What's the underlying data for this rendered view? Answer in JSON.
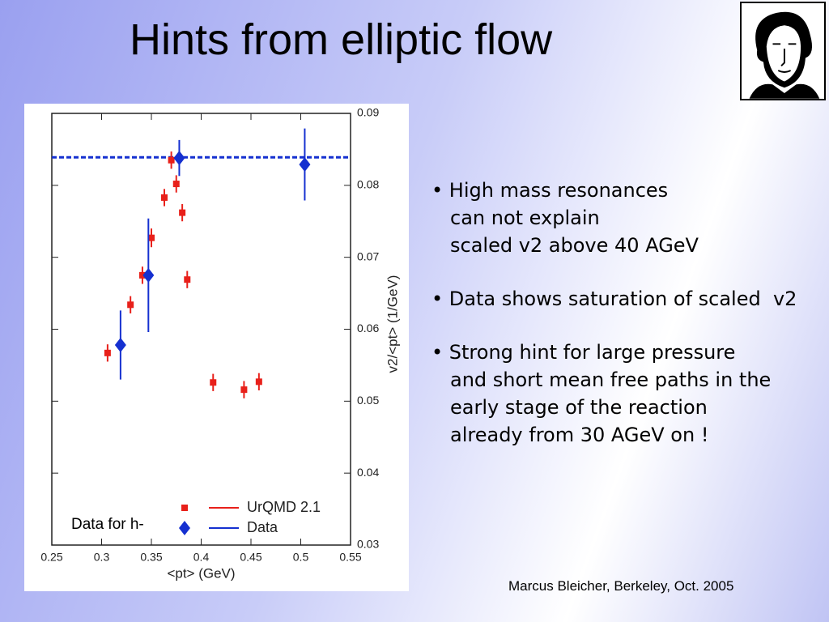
{
  "title": "Hints from elliptic flow",
  "bullets": [
    [
      "• High mass resonances",
      "can not explain",
      "scaled v2 above 40 AGeV"
    ],
    [
      "• Data shows saturation of scaled  v2"
    ],
    [
      "• Strong hint for large pressure",
      "and short mean free paths in the",
      "early stage of the reaction",
      "already from 30 AGeV on !"
    ]
  ],
  "footer": "Marcus Bleicher, Berkeley, Oct. 2005",
  "chart_data": {
    "type": "scatter",
    "xlabel": "<pt> (GeV)",
    "ylabel": "v2/<pt> (1/GeV)",
    "xlim": [
      0.25,
      0.55
    ],
    "xticks": [
      0.25,
      0.3,
      0.35,
      0.4,
      0.45,
      0.5,
      0.55
    ],
    "ylim": [
      0.03,
      0.09
    ],
    "yticks": [
      0.03,
      0.04,
      0.05,
      0.06,
      0.07,
      0.08,
      0.09
    ],
    "hline": 0.0839,
    "annotation": "Data for h-",
    "series": [
      {
        "name": "UrQMD 2.1",
        "color": "#e8201a",
        "marker": "square",
        "x": [
          0.306,
          0.329,
          0.341,
          0.35,
          0.363,
          0.37,
          0.375,
          0.381,
          0.386,
          0.412,
          0.443,
          0.458
        ],
        "values": [
          0.0567,
          0.0634,
          0.0675,
          0.0727,
          0.0783,
          0.0835,
          0.0802,
          0.0762,
          0.0669,
          0.0526,
          0.0516,
          0.0527
        ],
        "errors": [
          0.0012,
          0.0012,
          0.0012,
          0.0013,
          0.0012,
          0.0012,
          0.0012,
          0.0012,
          0.0012,
          0.0012,
          0.0012,
          0.0012
        ]
      },
      {
        "name": "Data",
        "color": "#1530d0",
        "marker": "diamond",
        "x": [
          0.319,
          0.347,
          0.378,
          0.504
        ],
        "values": [
          0.0578,
          0.0675,
          0.0838,
          0.0829
        ],
        "errors": [
          0.0048,
          0.0079,
          0.0025,
          0.005
        ]
      }
    ]
  }
}
